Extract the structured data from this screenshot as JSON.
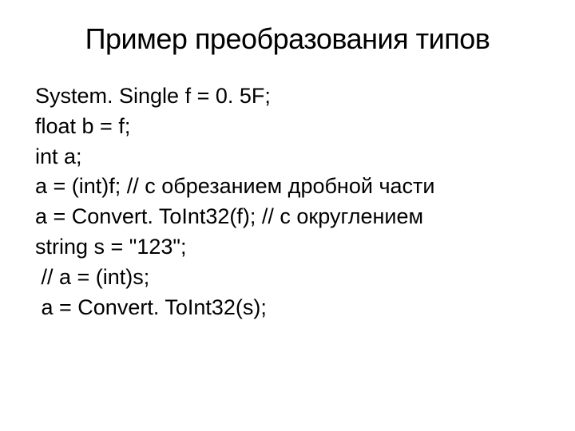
{
  "slide": {
    "title": "Пример преобразования типов",
    "code_lines": [
      "System. Single f = 0. 5F;",
      "float b = f;",
      "int a;",
      "a = (int)f; // с обрезанием дробной части",
      "a = Convert. ToInt32(f); // с округлением",
      "string s = \"123\";",
      " // a = (int)s;",
      " a = Convert. ToInt32(s);"
    ],
    "styling": {
      "background_color": "#ffffff",
      "text_color": "#000000",
      "title_fontsize": 36,
      "body_fontsize": 27,
      "font_family": "Arial"
    }
  }
}
